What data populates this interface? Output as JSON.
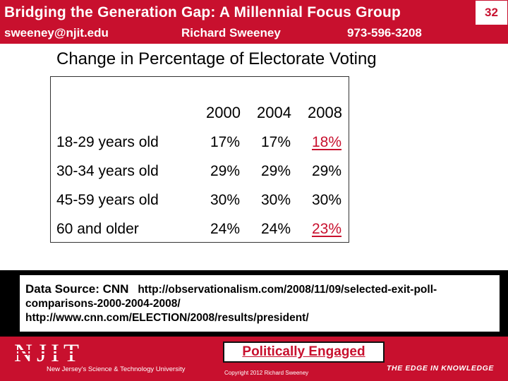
{
  "header": {
    "title": "Bridging the Generation Gap: A Millennial Focus Group",
    "slide_number": "32",
    "email": "sweeney@njit.edu",
    "presenter": "Richard Sweeney",
    "phone": "973-596-3208"
  },
  "slide": {
    "subtitle": "Change in Percentage of Electorate Voting"
  },
  "table": {
    "years": [
      "2000",
      "2004",
      "2008"
    ],
    "rows": [
      {
        "label": "18-29 years old",
        "values": [
          "17%",
          "17%",
          "18%"
        ]
      },
      {
        "label": "30-34 years old",
        "values": [
          "29%",
          "29%",
          "29%"
        ]
      },
      {
        "label": "45-59 years old",
        "values": [
          "30%",
          "30%",
          "30%"
        ]
      },
      {
        "label": "60 and older",
        "values": [
          "24%",
          "24%",
          "23%"
        ]
      }
    ]
  },
  "source": {
    "label": "Data Source:  CNN",
    "url1": "http://observationalism.com/2008/11/09/selected-exit-poll-comparisons-2000-2004-2008/",
    "url2": "http://www.cnn.com/ELECTION/2008/results/president/"
  },
  "footer": {
    "logo_text": "NJIT",
    "tagline": "New Jersey's Science & Technology University",
    "badge": "Politically Engaged",
    "copyright": "Copyright  2012 Richard Sweeney",
    "slogan": "THE EDGE IN KNOWLEDGE"
  },
  "colors": {
    "brand_red": "#c8102e",
    "black": "#000000",
    "white": "#ffffff"
  }
}
